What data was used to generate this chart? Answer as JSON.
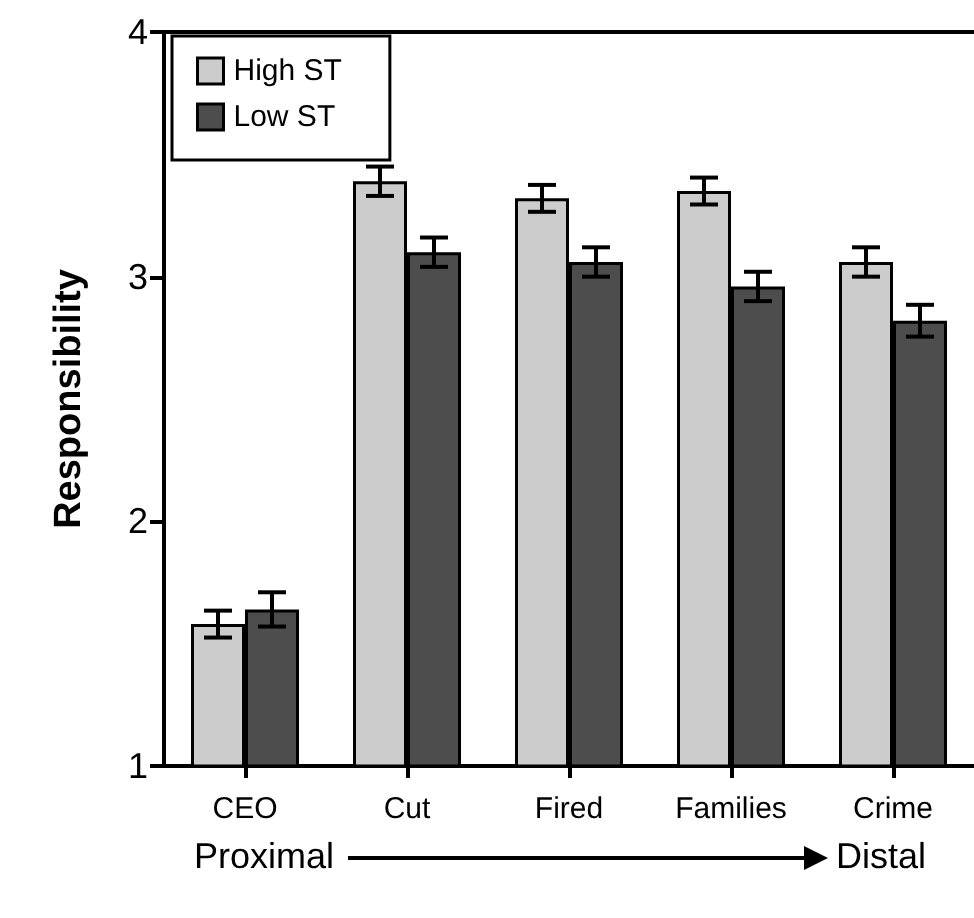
{
  "chart_data": {
    "type": "bar",
    "ylabel": "Responsibility",
    "categories": [
      "CEO",
      "Cut",
      "Fired",
      "Families",
      "Crime"
    ],
    "series": [
      {
        "name": "High ST",
        "color": "#cccccc",
        "values": [
          1.58,
          3.39,
          3.32,
          3.35,
          3.06
        ],
        "errors": [
          0.055,
          0.06,
          0.055,
          0.055,
          0.06
        ]
      },
      {
        "name": "Low ST",
        "color": "#4d4d4d",
        "values": [
          1.64,
          3.1,
          3.06,
          2.96,
          2.82
        ],
        "errors": [
          0.07,
          0.06,
          0.06,
          0.06,
          0.065
        ]
      }
    ],
    "ylim": [
      1,
      4
    ],
    "yticks": [
      1,
      2,
      3,
      4
    ],
    "grid": false,
    "legend": "top left",
    "annotations": [
      "Proximal",
      "Distal"
    ]
  }
}
